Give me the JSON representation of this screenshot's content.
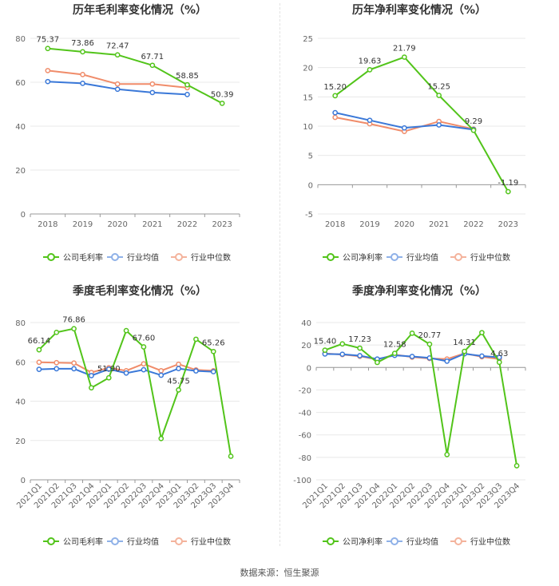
{
  "colors": {
    "company": "#52c41a",
    "industry_avg": "#3a78d8",
    "industry_median": "#f08c6a",
    "legend_avg": "#8fb1e8",
    "legend_median": "#f4b39c",
    "grid": "#e8e8e8",
    "axis": "#999999"
  },
  "source_text": "数据来源：恒生聚源",
  "chart_data": [
    {
      "type": "line",
      "title": "历年毛利率变化情况（%）",
      "categories": [
        "2018",
        "2019",
        "2020",
        "2021",
        "2022",
        "2023"
      ],
      "ylim": [
        0,
        80
      ],
      "yticks": [
        0,
        20,
        40,
        60,
        80
      ],
      "grid": true,
      "legend_position": "bottom",
      "series": [
        {
          "name": "公司毛利率",
          "color_key": "company",
          "values": [
            75.37,
            73.86,
            72.47,
            67.71,
            58.85,
            50.39
          ],
          "labels": [
            "75.37",
            "73.86",
            "72.47",
            "67.71",
            "58.85",
            "50.39"
          ]
        },
        {
          "name": "行业均值",
          "color_key": "industry_avg",
          "values": [
            60.3,
            59.5,
            56.8,
            55.3,
            54.4,
            null
          ]
        },
        {
          "name": "行业中位数",
          "color_key": "industry_median",
          "values": [
            65.3,
            63.5,
            59.2,
            59.2,
            57.5,
            null
          ]
        }
      ]
    },
    {
      "type": "line",
      "title": "历年净利率变化情况（%）",
      "categories": [
        "2018",
        "2019",
        "2020",
        "2021",
        "2022",
        "2023"
      ],
      "ylim": [
        -5,
        25
      ],
      "yticks": [
        -5,
        0,
        5,
        10,
        15,
        20,
        25
      ],
      "grid": true,
      "legend_position": "bottom",
      "series": [
        {
          "name": "公司净利率",
          "color_key": "company",
          "values": [
            15.2,
            19.63,
            21.79,
            15.25,
            9.29,
            -1.19
          ],
          "labels": [
            "15.20",
            "19.63",
            "21.79",
            "15.25",
            "9.29",
            "-1.19"
          ]
        },
        {
          "name": "行业均值",
          "color_key": "industry_avg",
          "values": [
            12.3,
            11.0,
            9.7,
            10.2,
            9.4,
            null
          ]
        },
        {
          "name": "行业中位数",
          "color_key": "industry_median",
          "values": [
            11.5,
            10.4,
            9.1,
            10.8,
            9.5,
            null
          ]
        }
      ]
    },
    {
      "type": "line",
      "title": "季度毛利率变化情况（%）",
      "categories": [
        "2021Q1",
        "2021Q2",
        "2021Q3",
        "2021Q4",
        "2022Q1",
        "2022Q2",
        "2022Q3",
        "2022Q4",
        "2023Q1",
        "2023Q2",
        "2023Q3",
        "2023Q4"
      ],
      "ylim": [
        0,
        80
      ],
      "yticks": [
        0,
        20,
        40,
        60,
        80
      ],
      "grid": true,
      "rotate_x_labels": true,
      "legend_position": "bottom",
      "series": [
        {
          "name": "公司毛利率",
          "color_key": "company",
          "values": [
            66.14,
            75.0,
            76.86,
            46.8,
            51.9,
            75.9,
            67.6,
            21.0,
            45.75,
            71.5,
            65.26,
            12.0
          ],
          "labels": [
            "66.14",
            "",
            "76.86",
            "",
            "51.90",
            "",
            "67.60",
            "",
            "45.75",
            "",
            "65.26",
            ""
          ]
        },
        {
          "name": "行业均值",
          "color_key": "industry_avg",
          "values": [
            56.2,
            56.5,
            56.5,
            53.0,
            56.3,
            54.3,
            56.0,
            53.2,
            56.6,
            55.4,
            55.0,
            null
          ]
        },
        {
          "name": "行业中位数",
          "color_key": "industry_median",
          "values": [
            59.8,
            59.6,
            59.4,
            54.6,
            57.0,
            55.5,
            59.0,
            55.5,
            58.8,
            55.9,
            55.5,
            null
          ]
        }
      ]
    },
    {
      "type": "line",
      "title": "季度净利率变化情况（%）",
      "categories": [
        "2021Q1",
        "2021Q2",
        "2021Q3",
        "2021Q4",
        "2022Q1",
        "2022Q2",
        "2022Q3",
        "2022Q4",
        "2023Q1",
        "2023Q2",
        "2023Q3",
        "2023Q4"
      ],
      "ylim": [
        -100,
        40
      ],
      "yticks": [
        -100,
        -80,
        -60,
        -40,
        -20,
        0,
        20,
        40
      ],
      "grid": true,
      "rotate_x_labels": true,
      "legend_position": "bottom",
      "series": [
        {
          "name": "公司净利率",
          "color_key": "company",
          "values": [
            15.4,
            21.0,
            17.23,
            4.5,
            12.58,
            30.5,
            20.77,
            -77.5,
            14.31,
            31.0,
            4.63,
            -87.5
          ],
          "labels": [
            "15.40",
            "",
            "17.23",
            "",
            "12.58",
            "",
            "20.77",
            "",
            "14.31",
            "",
            "4.63",
            ""
          ]
        },
        {
          "name": "行业均值",
          "color_key": "industry_avg",
          "values": [
            12.0,
            11.8,
            10.5,
            7.5,
            10.8,
            9.8,
            8.5,
            5.6,
            12.2,
            10.2,
            9.0,
            null
          ]
        },
        {
          "name": "行业中位数",
          "color_key": "industry_median",
          "values": [
            12.5,
            11.5,
            10.0,
            7.0,
            11.5,
            9.2,
            8.0,
            7.5,
            12.5,
            9.5,
            7.5,
            null
          ]
        }
      ]
    }
  ]
}
